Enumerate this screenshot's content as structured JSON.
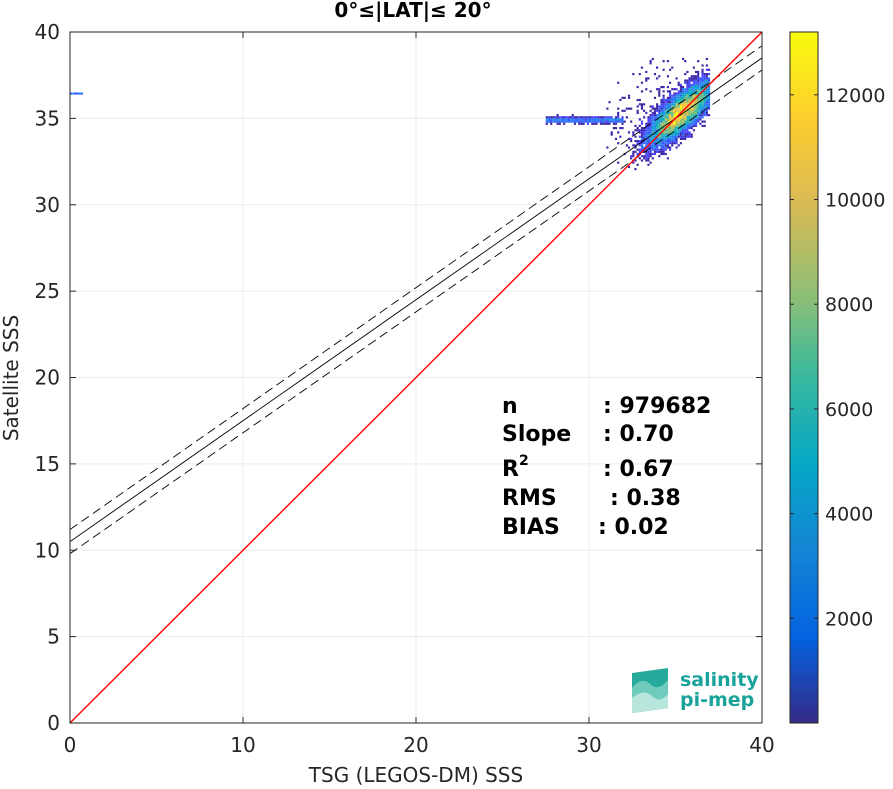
{
  "chart_data": {
    "type": "scatter",
    "title": "0°≤|LAT|≤ 20°",
    "xlabel": "TSG (LEGOS-DM) SSS",
    "ylabel": "Satellite SSS",
    "xlim": [
      0,
      40
    ],
    "ylim": [
      0,
      40
    ],
    "xticks": [
      0,
      10,
      20,
      30,
      40
    ],
    "yticks": [
      0,
      5,
      10,
      15,
      20,
      25,
      30,
      35,
      40
    ],
    "grid": true,
    "colorbar": {
      "range": [
        0,
        13200
      ],
      "ticks": [
        2000,
        4000,
        6000,
        8000,
        10000,
        12000
      ],
      "colormap": "parula"
    },
    "identity_line": {
      "color": "#ff0000",
      "x": [
        0,
        40
      ],
      "y": [
        0,
        40
      ]
    },
    "fit_line": {
      "slope": 0.7,
      "intercept": 10.5,
      "color": "#000000"
    },
    "fit_bounds": [
      {
        "slope": 0.7,
        "intercept": 11.2
      },
      {
        "slope": 0.7,
        "intercept": 9.8
      }
    ],
    "density_cloud": {
      "center": [
        35.3,
        35.3
      ],
      "core_extent_x": [
        32.0,
        37.0
      ],
      "core_extent_y": [
        31.5,
        38.5
      ],
      "tail_extent_x": [
        27.5,
        32.0
      ],
      "tail_y": 34.9,
      "outlier": {
        "x": [
          0.0,
          0.7
        ],
        "y": 36.4
      }
    },
    "stats": [
      {
        "label": "n",
        "value": ": 979682"
      },
      {
        "label": "Slope",
        "value": ": 0.70"
      },
      {
        "label": "R",
        "sup": "2",
        "value": ": 0.67"
      },
      {
        "label": "RMS",
        "value": ": 0.38"
      },
      {
        "label": "BIAS",
        "value": ": 0.02"
      }
    ]
  },
  "logo": {
    "line1": "salinity",
    "line2": "pi-mep"
  }
}
